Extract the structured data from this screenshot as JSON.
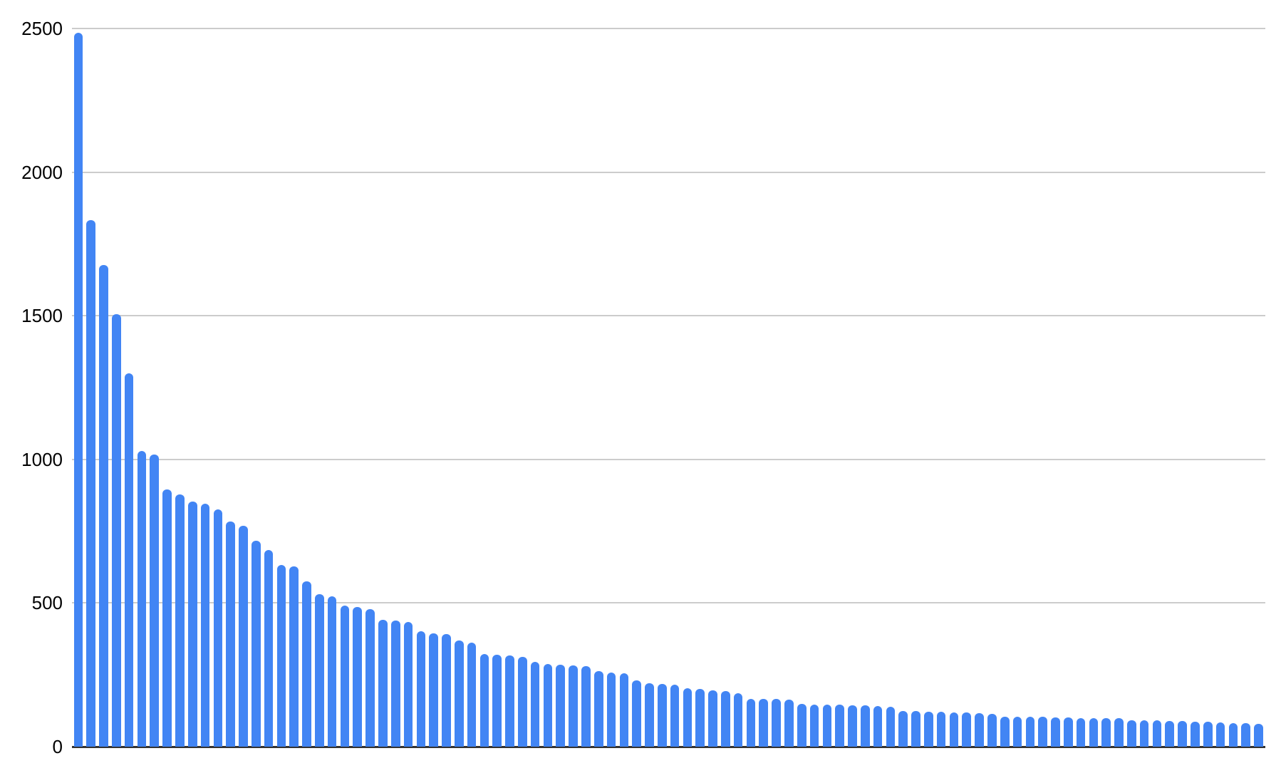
{
  "chart_data": {
    "type": "bar",
    "title": "",
    "xlabel": "",
    "ylabel": "",
    "categories": [],
    "values": [
      2485,
      1832,
      1677,
      1506,
      1300,
      1030,
      1018,
      895,
      878,
      854,
      846,
      827,
      783,
      770,
      718,
      684,
      633,
      628,
      575,
      530,
      524,
      491,
      486,
      478,
      442,
      439,
      435,
      403,
      394,
      391,
      369,
      361,
      323,
      319,
      317,
      313,
      295,
      287,
      285,
      283,
      281,
      263,
      259,
      256,
      230,
      220,
      218,
      216,
      204,
      200,
      196,
      194,
      187,
      167,
      166,
      165,
      164,
      148,
      147,
      146,
      146,
      145,
      144,
      142,
      139,
      124,
      123,
      122,
      121,
      120,
      119,
      117,
      115,
      105,
      104,
      104,
      103,
      101,
      101,
      100,
      100,
      99,
      99,
      92,
      92,
      91,
      90,
      89,
      88,
      86,
      85,
      83,
      82,
      80
    ],
    "ylim": [
      0,
      2500
    ],
    "yticks": [
      0,
      500,
      1000,
      1500,
      2000,
      2500
    ],
    "grid": true,
    "legend": "none",
    "bar_color": "#4285f4",
    "gridline_color": "#cccccc",
    "axis_color": "#333333",
    "label_color": "#000000",
    "background_color": "#ffffff"
  }
}
